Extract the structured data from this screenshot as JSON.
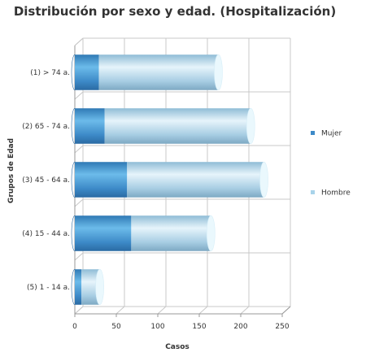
{
  "chart_data": {
    "type": "bar",
    "orientation": "horizontal",
    "stacked": true,
    "title": "Distribución por sexo y edad. (Hospitalización)",
    "xlabel": "Casos",
    "ylabel": "Grupos de Edad",
    "categories": [
      "(1) > 74 a.",
      "(2) 65 - 74 a.",
      "(3) 45 - 64 a.",
      "(4) 15 - 44 a.",
      "(5) 1 - 14 a."
    ],
    "series": [
      {
        "name": "Mujer",
        "values": [
          29,
          36,
          63,
          68,
          8
        ],
        "color": "#3d8ac8"
      },
      {
        "name": "Hombre",
        "values": [
          144,
          176,
          165,
          96,
          22
        ],
        "color": "#a9d3ea"
      }
    ],
    "xlim": [
      0,
      250
    ],
    "xticks": [
      "0",
      "50",
      "100",
      "150",
      "200",
      "250"
    ],
    "grid": true,
    "legend_position": "right"
  }
}
